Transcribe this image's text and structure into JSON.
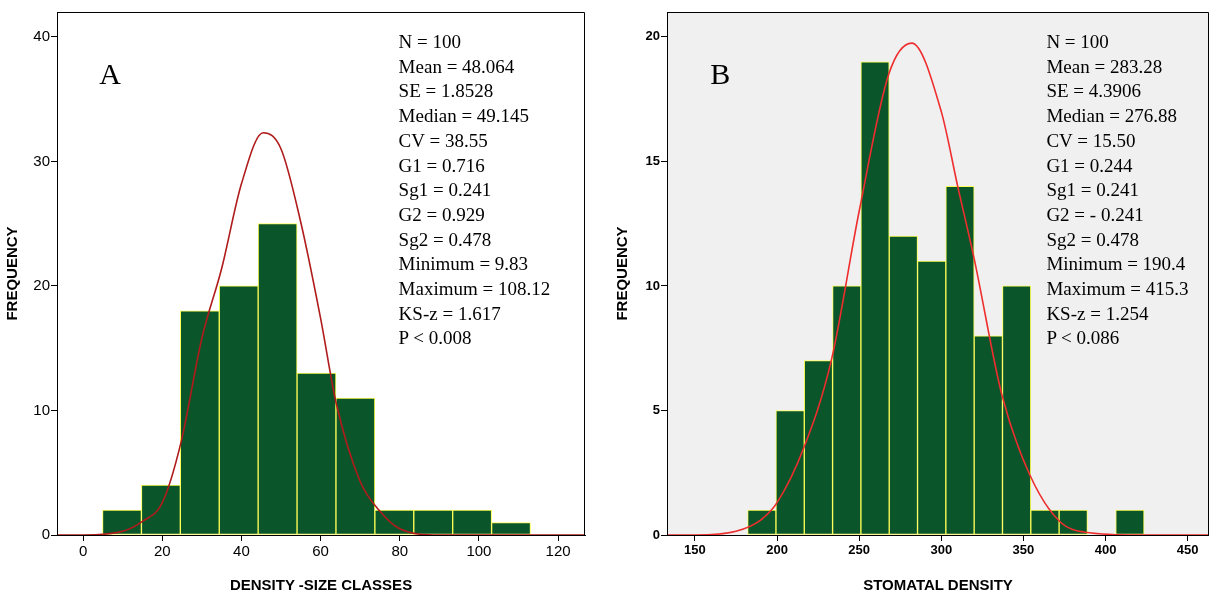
{
  "chart_data": [
    {
      "type": "histogram",
      "title": "A",
      "xlabel": "DENSITY -SIZE CLASSES",
      "ylabel": "FREQUENCY",
      "bins": [
        4.9,
        14.73,
        24.56,
        34.39,
        44.22,
        54.05,
        63.88,
        73.71,
        83.54,
        93.37,
        103.2,
        113.03
      ],
      "values": [
        2,
        4,
        18,
        20,
        25,
        13,
        11,
        2,
        2,
        2,
        1
      ],
      "color": "#0b552b",
      "series": [
        {
          "type": "line",
          "color": "#b01c1c",
          "x": [
            -6.6,
            0,
            10,
            15,
            20,
            24.7,
            30,
            35,
            40,
            45.5,
            50,
            55,
            60,
            64,
            70,
            75,
            80,
            90,
            126.8
          ],
          "values": [
            0,
            0,
            0.3,
            1.1,
            2.6,
            7.4,
            15.8,
            21.4,
            28.2,
            32.3,
            31,
            25.1,
            17.4,
            10.5,
            4.3,
            1.9,
            0.5,
            0,
            0
          ]
        }
      ],
      "xlim": [
        -6.6,
        126.8
      ],
      "xticks": [
        0,
        20,
        40,
        60,
        80,
        100,
        120
      ],
      "ylim": [
        0,
        42
      ],
      "yticks": [
        0,
        10,
        20,
        30,
        40
      ],
      "grid": false,
      "legend": false,
      "marker": "none",
      "annotations": [
        "N = 100",
        "Mean = 48.064",
        "SE = 1.8528",
        "Median = 49.145",
        "CV = 38.55",
        "G1 = 0.716",
        "Sg1 = 0.241",
        "G2 = 0.929",
        "Sg2 = 0.478",
        "Minimum = 9.83",
        "Maximum = 108.12",
        "KS-z = 1.617",
        "P < 0.008"
      ]
    },
    {
      "type": "histogram",
      "title": "B",
      "xlabel": "STOMATAL DENSITY",
      "ylabel": "FREQUENCY",
      "bins": [
        182.1,
        199.34,
        216.58,
        233.82,
        251.06,
        268.3,
        285.54,
        302.78,
        320.02,
        337.26,
        354.5,
        371.74,
        388.98,
        406.22,
        423.46
      ],
      "values": [
        1,
        5,
        7,
        10,
        19,
        12,
        11,
        14,
        8,
        10,
        1,
        1,
        0,
        1
      ],
      "color": "#0b552b",
      "series": [
        {
          "type": "line",
          "color": "#ee2e2e",
          "x": [
            133,
            150,
            175,
            190,
            200,
            216,
            233,
            250,
            268,
            282,
            300,
            310,
            320,
            337,
            354,
            372,
            389,
            420,
            463
          ],
          "values": [
            0,
            0,
            0.15,
            0.6,
            1.3,
            3.45,
            7,
            13,
            18.5,
            19.75,
            17,
            14,
            11.1,
            5.6,
            2.4,
            0.55,
            0.1,
            0,
            0
          ]
        }
      ],
      "xlim": [
        133,
        463
      ],
      "xticks": [
        150,
        200,
        250,
        300,
        350,
        400,
        450
      ],
      "ylim": [
        0,
        21
      ],
      "yticks": [
        0,
        5,
        10,
        15,
        20
      ],
      "grid": false,
      "legend": false,
      "marker": "none",
      "annotations": [
        "N = 100",
        "Mean = 283.28",
        "SE = 4.3906",
        "Median = 276.88",
        "CV = 15.50",
        "G1 = 0.244",
        "Sg1 = 0.241",
        "G2 = - 0.241",
        "Sg2 = 0.478",
        "Minimum = 190.4",
        "Maximum = 415.3",
        "KS-z = 1.254",
        "P < 0.086"
      ]
    }
  ]
}
